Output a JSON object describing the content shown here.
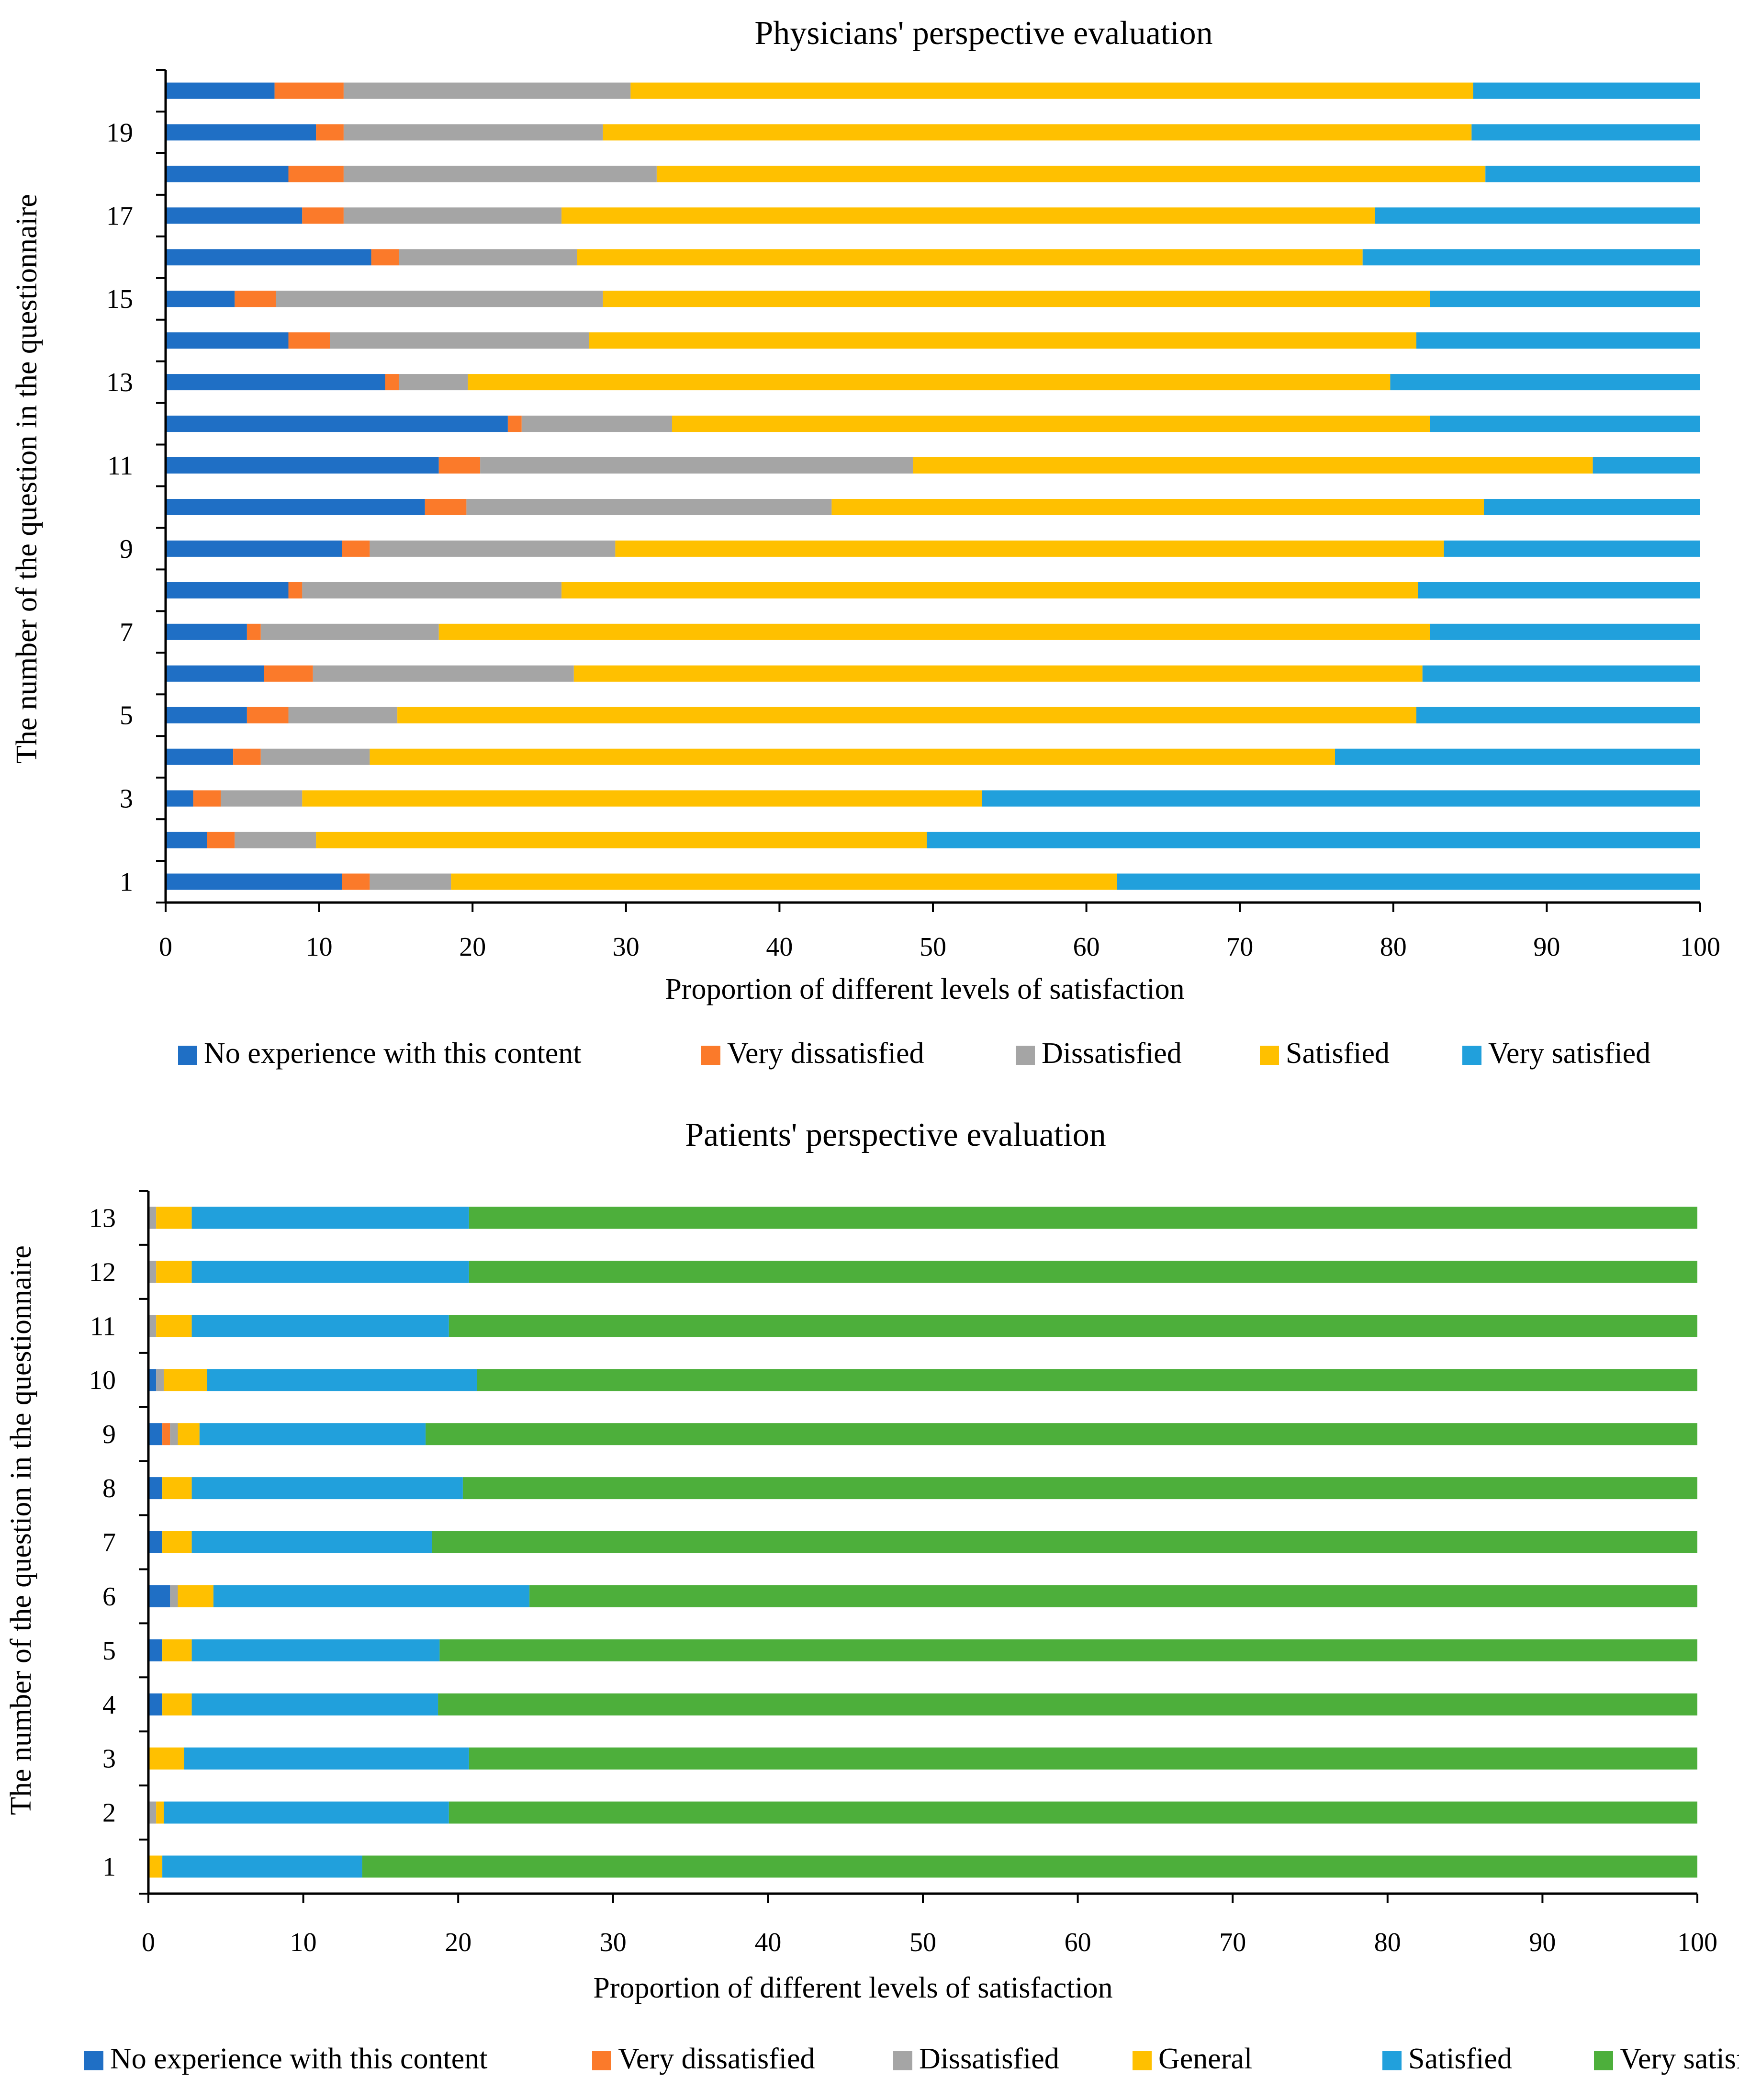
{
  "colors": {
    "no_experience": "#1F6FC5",
    "very_dissatisfied": "#FB7A2A",
    "dissatisfied": "#A5A5A5",
    "general": "#FFC000",
    "satisfied": "#21A0DC",
    "very_satisfied": "#4DAF3B"
  },
  "chart_data": [
    {
      "type": "bar",
      "orientation": "horizontal",
      "stacked": true,
      "title": "Physicians' perspective evaluation",
      "xlabel": "Proportion of different levels of satisfaction",
      "ylabel": "The number of the question in the questionnaire",
      "xlim": [
        0,
        100
      ],
      "x_ticks": [
        "0",
        "10",
        "20",
        "30",
        "40",
        "50",
        "60",
        "70",
        "80",
        "90",
        "100"
      ],
      "categories": [
        "1",
        "2",
        "3",
        "4",
        "5",
        "6",
        "7",
        "8",
        "9",
        "10",
        "11",
        "12",
        "13",
        "14",
        "15",
        "16",
        "17",
        "18",
        "19",
        "20"
      ],
      "y_tick_labels": [
        "1",
        "",
        "3",
        "",
        "5",
        "",
        "7",
        "",
        "9",
        "",
        "11",
        "",
        "13",
        "",
        "15",
        "",
        "17",
        "",
        "19",
        ""
      ],
      "legend_position": "bottom",
      "series": [
        {
          "name": "No experience with this content",
          "color_key": "no_experience",
          "values": [
            11.5,
            2.7,
            1.8,
            4.4,
            5.3,
            6.4,
            5.3,
            8.0,
            11.5,
            16.9,
            17.8,
            22.3,
            14.3,
            8.0,
            4.5,
            13.4,
            8.9,
            8.0,
            9.8,
            7.1
          ]
        },
        {
          "name": "Very dissatisfied",
          "color_key": "very_dissatisfied",
          "values": [
            1.8,
            1.8,
            1.8,
            1.8,
            2.7,
            3.2,
            0.9,
            0.9,
            1.8,
            2.7,
            2.7,
            0.9,
            0.9,
            2.7,
            2.7,
            1.8,
            2.7,
            3.6,
            1.8,
            4.5
          ]
        },
        {
          "name": "Dissatisfied",
          "color_key": "dissatisfied",
          "values": [
            5.3,
            5.3,
            5.3,
            7.1,
            7.1,
            17.0,
            11.6,
            16.9,
            16.0,
            23.8,
            28.2,
            9.8,
            4.5,
            16.9,
            21.3,
            11.6,
            14.2,
            20.4,
            16.9,
            18.7
          ]
        },
        {
          "name": "Satisfied",
          "color_key": "general",
          "values": [
            43.4,
            39.8,
            44.3,
            62.9,
            66.4,
            55.3,
            64.6,
            55.8,
            54.0,
            42.5,
            44.3,
            49.4,
            60.1,
            53.9,
            53.9,
            51.2,
            53.0,
            54.0,
            56.6,
            54.9
          ]
        },
        {
          "name": "Very satisfied",
          "color_key": "satisfied",
          "values": [
            38.0,
            50.4,
            46.8,
            23.8,
            18.5,
            18.1,
            17.6,
            18.4,
            16.7,
            14.1,
            7.0,
            17.6,
            20.2,
            18.5,
            17.6,
            22.0,
            21.2,
            14.0,
            14.9,
            14.8
          ]
        }
      ]
    },
    {
      "type": "bar",
      "orientation": "horizontal",
      "stacked": true,
      "title": "Patients' perspective evaluation",
      "xlabel": "Proportion of different levels of satisfaction",
      "ylabel": "The number of the question in the questionnaire",
      "xlim": [
        0,
        100
      ],
      "x_ticks": [
        "0",
        "10",
        "20",
        "30",
        "40",
        "50",
        "60",
        "70",
        "80",
        "90",
        "100"
      ],
      "categories": [
        "1",
        "2",
        "3",
        "4",
        "5",
        "6",
        "7",
        "8",
        "9",
        "10",
        "11",
        "12",
        "13"
      ],
      "y_tick_labels": [
        "1",
        "2",
        "3",
        "4",
        "5",
        "6",
        "7",
        "8",
        "9",
        "10",
        "11",
        "12",
        "13"
      ],
      "legend_position": "bottom",
      "series": [
        {
          "name": "No experience with this content",
          "color_key": "no_experience",
          "values": [
            0,
            0,
            0,
            0.9,
            0.9,
            1.4,
            0.9,
            0.9,
            0.9,
            0.5,
            0,
            0,
            0
          ]
        },
        {
          "name": "Very dissatisfied",
          "color_key": "very_dissatisfied",
          "values": [
            0,
            0,
            0,
            0,
            0,
            0,
            0,
            0,
            0.5,
            0,
            0,
            0,
            0
          ]
        },
        {
          "name": "Dissatisfied",
          "color_key": "dissatisfied",
          "values": [
            0,
            0.5,
            0,
            0,
            0,
            0.5,
            0,
            0,
            0.5,
            0.5,
            0.5,
            0.5,
            0.5
          ]
        },
        {
          "name": "General",
          "color_key": "general",
          "values": [
            0.9,
            0.5,
            2.3,
            1.9,
            1.9,
            2.3,
            1.9,
            1.9,
            1.4,
            2.8,
            2.3,
            2.3,
            2.3
          ]
        },
        {
          "name": "Satisfied",
          "color_key": "satisfied",
          "values": [
            12.9,
            18.4,
            18.4,
            15.9,
            16.0,
            20.4,
            15.5,
            17.5,
            14.6,
            17.4,
            16.6,
            17.9,
            17.9
          ]
        },
        {
          "name": "Very satisfied",
          "color_key": "very_satisfied",
          "values": [
            86.2,
            80.6,
            79.3,
            81.3,
            81.2,
            75.4,
            81.7,
            79.7,
            82.1,
            78.8,
            80.6,
            79.3,
            79.3
          ]
        }
      ]
    }
  ]
}
